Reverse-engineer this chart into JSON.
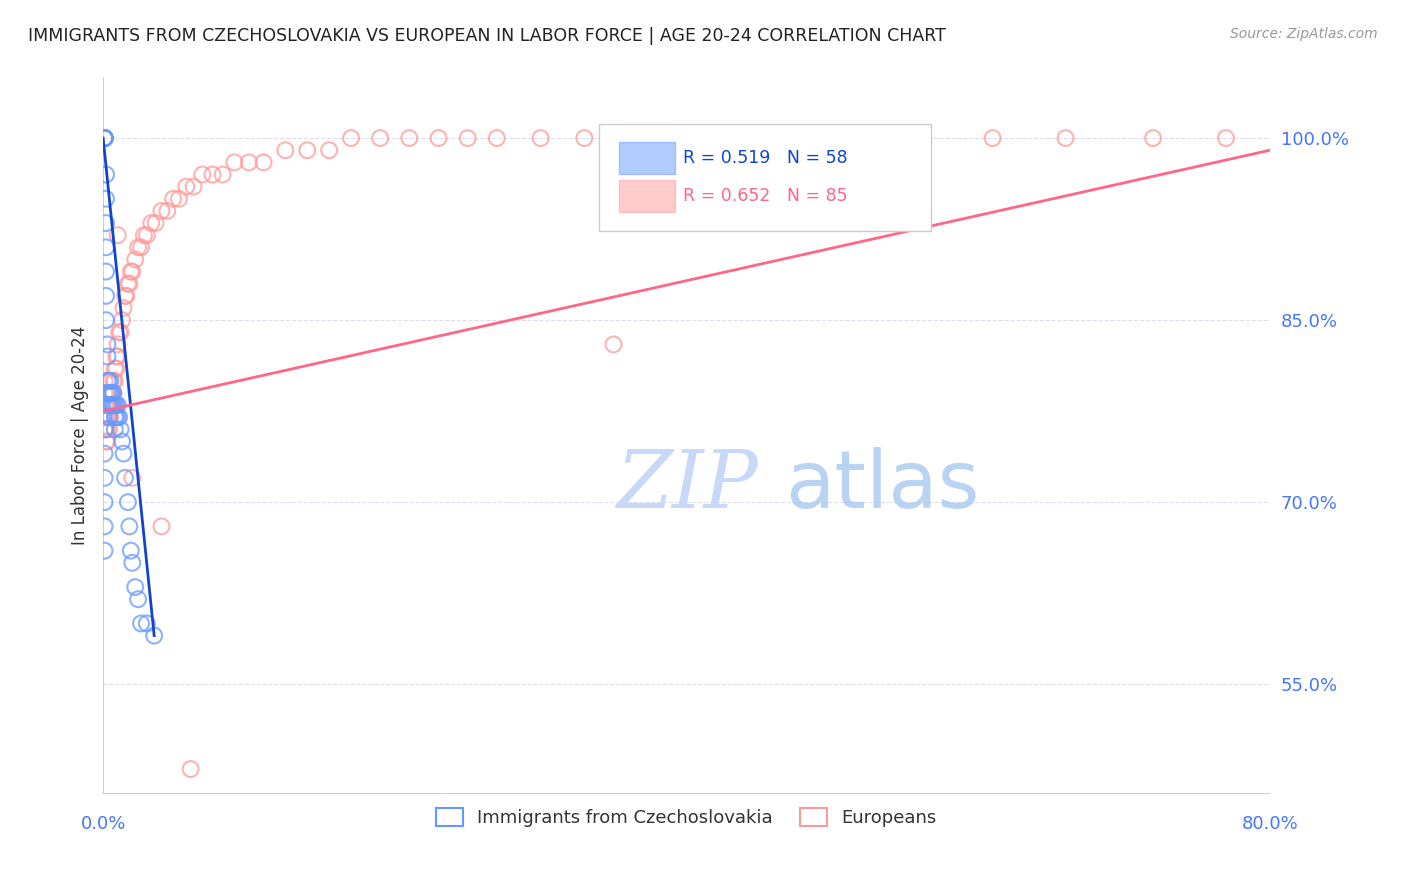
{
  "title": "IMMIGRANTS FROM CZECHOSLOVAKIA VS EUROPEAN IN LABOR FORCE | AGE 20-24 CORRELATION CHART",
  "source": "Source: ZipAtlas.com",
  "ylabel": "In Labor Force | Age 20-24",
  "yticks": [
    0.55,
    0.7,
    0.85,
    1.0
  ],
  "ytick_labels": [
    "55.0%",
    "70.0%",
    "85.0%",
    "100.0%"
  ],
  "xmin": 0.0,
  "xmax": 0.8,
  "ymin": 0.46,
  "ymax": 1.05,
  "blue_R": 0.519,
  "blue_N": 58,
  "pink_R": 0.652,
  "pink_N": 85,
  "blue_color": "#6699FF",
  "pink_color": "#FF9999",
  "blue_line_color": "#1144CC",
  "pink_line_color": "#FF6688",
  "blue_label": "Immigrants from Czechoslovakia",
  "pink_label": "Europeans",
  "watermark_zip_color": "#C8D8F8",
  "watermark_atlas_color": "#A8C8F0",
  "title_color": "#222222",
  "axis_label_color": "#4477FF",
  "grid_color": "#DDDDEE",
  "blue_scatter_x": [
    0.001,
    0.001,
    0.001,
    0.001,
    0.001,
    0.001,
    0.001,
    0.001,
    0.002,
    0.002,
    0.002,
    0.002,
    0.002,
    0.002,
    0.002,
    0.003,
    0.003,
    0.003,
    0.003,
    0.003,
    0.004,
    0.004,
    0.004,
    0.004,
    0.005,
    0.005,
    0.005,
    0.006,
    0.006,
    0.007,
    0.007,
    0.008,
    0.008,
    0.008,
    0.009,
    0.009,
    0.01,
    0.01,
    0.011,
    0.012,
    0.013,
    0.014,
    0.015,
    0.017,
    0.018,
    0.019,
    0.02,
    0.022,
    0.024,
    0.026,
    0.03,
    0.035,
    0.001,
    0.001,
    0.001,
    0.001,
    0.001,
    0.001
  ],
  "blue_scatter_y": [
    1.0,
    1.0,
    1.0,
    1.0,
    1.0,
    1.0,
    1.0,
    1.0,
    0.97,
    0.95,
    0.93,
    0.91,
    0.89,
    0.87,
    0.85,
    0.83,
    0.82,
    0.8,
    0.79,
    0.78,
    0.8,
    0.79,
    0.78,
    0.77,
    0.8,
    0.79,
    0.78,
    0.79,
    0.78,
    0.79,
    0.78,
    0.78,
    0.77,
    0.76,
    0.78,
    0.77,
    0.78,
    0.77,
    0.77,
    0.76,
    0.75,
    0.74,
    0.72,
    0.7,
    0.68,
    0.66,
    0.65,
    0.63,
    0.62,
    0.6,
    0.6,
    0.59,
    0.76,
    0.74,
    0.72,
    0.7,
    0.68,
    0.66
  ],
  "pink_scatter_x": [
    0.001,
    0.001,
    0.001,
    0.001,
    0.001,
    0.002,
    0.002,
    0.002,
    0.002,
    0.002,
    0.003,
    0.003,
    0.003,
    0.003,
    0.004,
    0.004,
    0.004,
    0.005,
    0.005,
    0.005,
    0.006,
    0.006,
    0.007,
    0.007,
    0.008,
    0.008,
    0.009,
    0.009,
    0.01,
    0.01,
    0.011,
    0.012,
    0.013,
    0.014,
    0.015,
    0.016,
    0.017,
    0.018,
    0.019,
    0.02,
    0.022,
    0.024,
    0.026,
    0.028,
    0.03,
    0.033,
    0.036,
    0.04,
    0.044,
    0.048,
    0.052,
    0.057,
    0.062,
    0.068,
    0.075,
    0.082,
    0.09,
    0.1,
    0.11,
    0.125,
    0.14,
    0.155,
    0.17,
    0.19,
    0.21,
    0.23,
    0.25,
    0.27,
    0.3,
    0.33,
    0.36,
    0.4,
    0.44,
    0.48,
    0.52,
    0.56,
    0.61,
    0.66,
    0.72,
    0.77,
    0.01,
    0.02,
    0.04,
    0.06,
    0.35
  ],
  "pink_scatter_y": [
    0.8,
    0.79,
    0.78,
    0.77,
    0.76,
    0.79,
    0.78,
    0.77,
    0.76,
    0.75,
    0.78,
    0.77,
    0.76,
    0.75,
    0.78,
    0.77,
    0.76,
    0.79,
    0.78,
    0.77,
    0.79,
    0.78,
    0.8,
    0.79,
    0.81,
    0.8,
    0.82,
    0.81,
    0.83,
    0.82,
    0.84,
    0.84,
    0.85,
    0.86,
    0.87,
    0.87,
    0.88,
    0.88,
    0.89,
    0.89,
    0.9,
    0.91,
    0.91,
    0.92,
    0.92,
    0.93,
    0.93,
    0.94,
    0.94,
    0.95,
    0.95,
    0.96,
    0.96,
    0.97,
    0.97,
    0.97,
    0.98,
    0.98,
    0.98,
    0.99,
    0.99,
    0.99,
    1.0,
    1.0,
    1.0,
    1.0,
    1.0,
    1.0,
    1.0,
    1.0,
    1.0,
    1.0,
    1.0,
    1.0,
    1.0,
    1.0,
    1.0,
    1.0,
    1.0,
    1.0,
    0.92,
    0.72,
    0.68,
    0.48,
    0.83
  ],
  "blue_trend_x": [
    0.0,
    0.035
  ],
  "blue_trend_y": [
    1.0,
    0.59
  ],
  "pink_trend_x": [
    0.0,
    0.8
  ],
  "pink_trend_y": [
    0.775,
    0.99
  ]
}
